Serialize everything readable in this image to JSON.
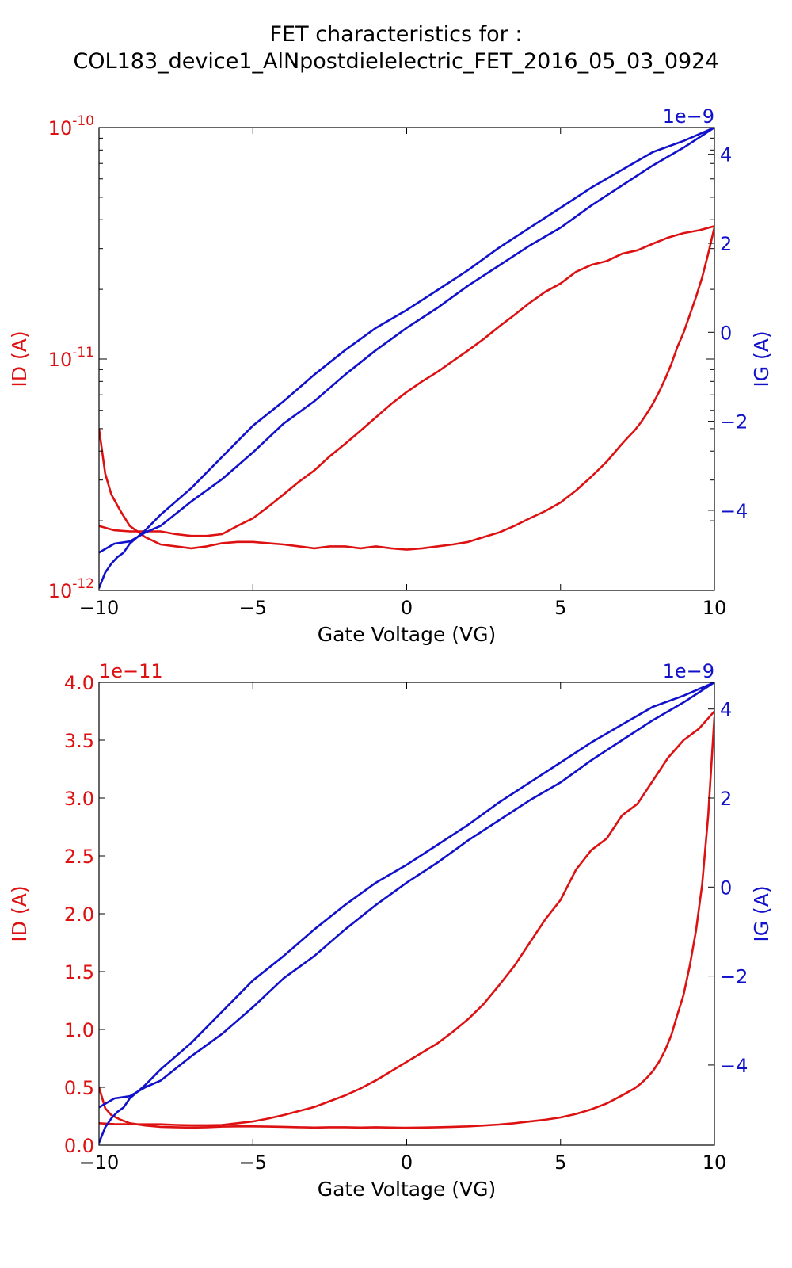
{
  "figure": {
    "title_line1": "FET characteristics for :",
    "title_line2": "COL183_device1_AlNpostdielelectric_FET_2016_05_03_0924"
  },
  "colors": {
    "id": "#dd1111",
    "ig": "#1111cc",
    "axes": "#000000"
  },
  "chart_data": [
    {
      "type": "line",
      "xlabel": "Gate Voltage (VG)",
      "ylabel_left": "ID (A)",
      "ylabel_right": "IG (A)",
      "x_ticks": [
        "−10",
        "−5",
        "0",
        "5",
        "10"
      ],
      "x_tick_values": [
        -10,
        -5,
        0,
        5,
        10
      ],
      "xlim": [
        -10,
        10
      ],
      "y_left_scale": "log",
      "y_left_lim": [
        1e-12,
        1e-10
      ],
      "y_left_ticks": [
        {
          "value": 1e-10,
          "base": "10",
          "exp": "-10"
        },
        {
          "value": 1e-11,
          "base": "10",
          "exp": "-11"
        },
        {
          "value": 1e-12,
          "base": "10",
          "exp": "-12"
        }
      ],
      "y_right_lim": [
        -5.8e-09,
        4.6e-09
      ],
      "y_right_offset": "1e−9",
      "y_right_ticks": [
        "4",
        "2",
        "0",
        "−2",
        "−4"
      ],
      "y_right_tick_values": [
        4e-09,
        2e-09,
        0,
        -2e-09,
        -4e-09
      ],
      "grid": false,
      "series": [
        {
          "axis": "left",
          "color": "#dd1111",
          "x": [
            -10,
            -9.7,
            -9.5,
            -9,
            -8.5,
            -8,
            -7.5,
            -7,
            -6.5,
            -6,
            -5.5,
            -5,
            -4.5,
            -4,
            -3.5,
            -3,
            -2.5,
            -2,
            -1.5,
            -1,
            -0.5,
            0,
            0.5,
            1,
            1.5,
            2,
            2.5,
            3,
            3.5,
            4,
            4.5,
            5,
            5.5,
            6,
            6.5,
            7,
            7.5,
            8,
            8.5,
            9,
            9.5,
            10
          ],
          "y": [
            1.9e-12,
            1.85e-12,
            1.82e-12,
            1.8e-12,
            1.8e-12,
            1.8e-12,
            1.75e-12,
            1.72e-12,
            1.72e-12,
            1.75e-12,
            1.9e-12,
            2.05e-12,
            2.3e-12,
            2.6e-12,
            2.95e-12,
            3.3e-12,
            3.8e-12,
            4.3e-12,
            4.9e-12,
            5.6e-12,
            6.4e-12,
            7.2e-12,
            8e-12,
            8.8e-12,
            9.8e-12,
            1.09e-11,
            1.22e-11,
            1.38e-11,
            1.55e-11,
            1.75e-11,
            1.95e-11,
            2.12e-11,
            2.38e-11,
            2.55e-11,
            2.65e-11,
            2.85e-11,
            2.95e-11,
            3.15e-11,
            3.35e-11,
            3.5e-11,
            3.6e-11,
            3.75e-11
          ]
        },
        {
          "axis": "left",
          "color": "#dd1111",
          "x": [
            10,
            9.8,
            9.6,
            9.4,
            9.2,
            9,
            8.8,
            8.6,
            8.4,
            8.2,
            8,
            7.8,
            7.6,
            7.4,
            7.2,
            7,
            6.5,
            6,
            5.5,
            5,
            4.5,
            4,
            3.5,
            3,
            2.5,
            2,
            1.5,
            1,
            0.5,
            0,
            -0.5,
            -1,
            -1.5,
            -2,
            -2.5,
            -3,
            -3.5,
            -4,
            -4.5,
            -5,
            -5.5,
            -6,
            -6.5,
            -7,
            -7.5,
            -8,
            -8.5,
            -9,
            -9.3,
            -9.6,
            -9.8,
            -10
          ],
          "y": [
            3.7e-11,
            2.85e-11,
            2.25e-11,
            1.85e-11,
            1.55e-11,
            1.3e-11,
            1.13e-11,
            9.5e-12,
            8.2e-12,
            7.2e-12,
            6.4e-12,
            5.8e-12,
            5.3e-12,
            4.9e-12,
            4.6e-12,
            4.3e-12,
            3.6e-12,
            3.1e-12,
            2.7e-12,
            2.4e-12,
            2.2e-12,
            2.05e-12,
            1.9e-12,
            1.78e-12,
            1.7e-12,
            1.62e-12,
            1.58e-12,
            1.55e-12,
            1.52e-12,
            1.5e-12,
            1.52e-12,
            1.55e-12,
            1.52e-12,
            1.55e-12,
            1.55e-12,
            1.52e-12,
            1.55e-12,
            1.58e-12,
            1.6e-12,
            1.62e-12,
            1.62e-12,
            1.6e-12,
            1.55e-12,
            1.52e-12,
            1.55e-12,
            1.58e-12,
            1.7e-12,
            1.9e-12,
            2.2e-12,
            2.6e-12,
            3.2e-12,
            5e-12
          ]
        },
        {
          "axis": "right",
          "color": "#1111cc",
          "x": [
            -10,
            -9.8,
            -9.6,
            -9.4,
            -9.2,
            -9,
            -8.5,
            -8,
            -7,
            -6,
            -5,
            -4,
            -3,
            -2,
            -1,
            0,
            1,
            2,
            3,
            4,
            5,
            6,
            7,
            8,
            9,
            10
          ],
          "y": [
            -5.75e-09,
            -5.4e-09,
            -5.2e-09,
            -5.05e-09,
            -4.95e-09,
            -4.75e-09,
            -4.45e-09,
            -4.1e-09,
            -3.5e-09,
            -2.8e-09,
            -2.1e-09,
            -1.55e-09,
            -9.5e-10,
            -4e-10,
            1e-10,
            5e-10,
            9.5e-10,
            1.4e-09,
            1.9e-09,
            2.35e-09,
            2.8e-09,
            3.25e-09,
            3.65e-09,
            4.05e-09,
            4.3e-09,
            4.6e-09
          ]
        },
        {
          "axis": "right",
          "color": "#1111cc",
          "x": [
            10,
            9,
            8,
            7,
            6,
            5,
            4,
            3,
            2,
            1,
            0,
            -1,
            -2,
            -3,
            -4,
            -5,
            -6,
            -7,
            -8,
            -8.5,
            -9,
            -9.5,
            -10
          ],
          "y": [
            4.6e-09,
            4.15e-09,
            3.75e-09,
            3.3e-09,
            2.85e-09,
            2.35e-09,
            1.95e-09,
            1.5e-09,
            1.05e-09,
            5.5e-10,
            1e-10,
            -4e-10,
            -9.5e-10,
            -1.55e-09,
            -2.05e-09,
            -2.7e-09,
            -3.3e-09,
            -3.8e-09,
            -4.35e-09,
            -4.5e-09,
            -4.7e-09,
            -4.75e-09,
            -4.95e-09
          ]
        }
      ]
    },
    {
      "type": "line",
      "xlabel": "Gate Voltage (VG)",
      "ylabel_left": "ID (A)",
      "ylabel_right": "IG (A)",
      "x_ticks": [
        "−10",
        "−5",
        "0",
        "5",
        "10"
      ],
      "x_tick_values": [
        -10,
        -5,
        0,
        5,
        10
      ],
      "xlim": [
        -10,
        10
      ],
      "y_left_scale": "linear",
      "y_left_lim": [
        0,
        4e-11
      ],
      "y_left_offset": "1e−11",
      "y_left_ticks": [
        "4.0",
        "3.5",
        "3.0",
        "2.5",
        "2.0",
        "1.5",
        "1.0",
        "0.5",
        "0.0"
      ],
      "y_left_tick_values": [
        4e-11,
        3.5e-11,
        3e-11,
        2.5e-11,
        2e-11,
        1.5e-11,
        1e-11,
        5e-12,
        0
      ],
      "y_right_lim": [
        -5.8e-09,
        4.6e-09
      ],
      "y_right_offset": "1e−9",
      "y_right_ticks": [
        "4",
        "2",
        "0",
        "−2",
        "−4"
      ],
      "y_right_tick_values": [
        4e-09,
        2e-09,
        0,
        -2e-09,
        -4e-09
      ],
      "grid": false,
      "series": [
        {
          "axis": "left",
          "color": "#dd1111",
          "ref": 0
        },
        {
          "axis": "left",
          "color": "#dd1111",
          "ref": 1
        },
        {
          "axis": "right",
          "color": "#1111cc",
          "ref": 2
        },
        {
          "axis": "right",
          "color": "#1111cc",
          "ref": 3
        }
      ]
    }
  ]
}
